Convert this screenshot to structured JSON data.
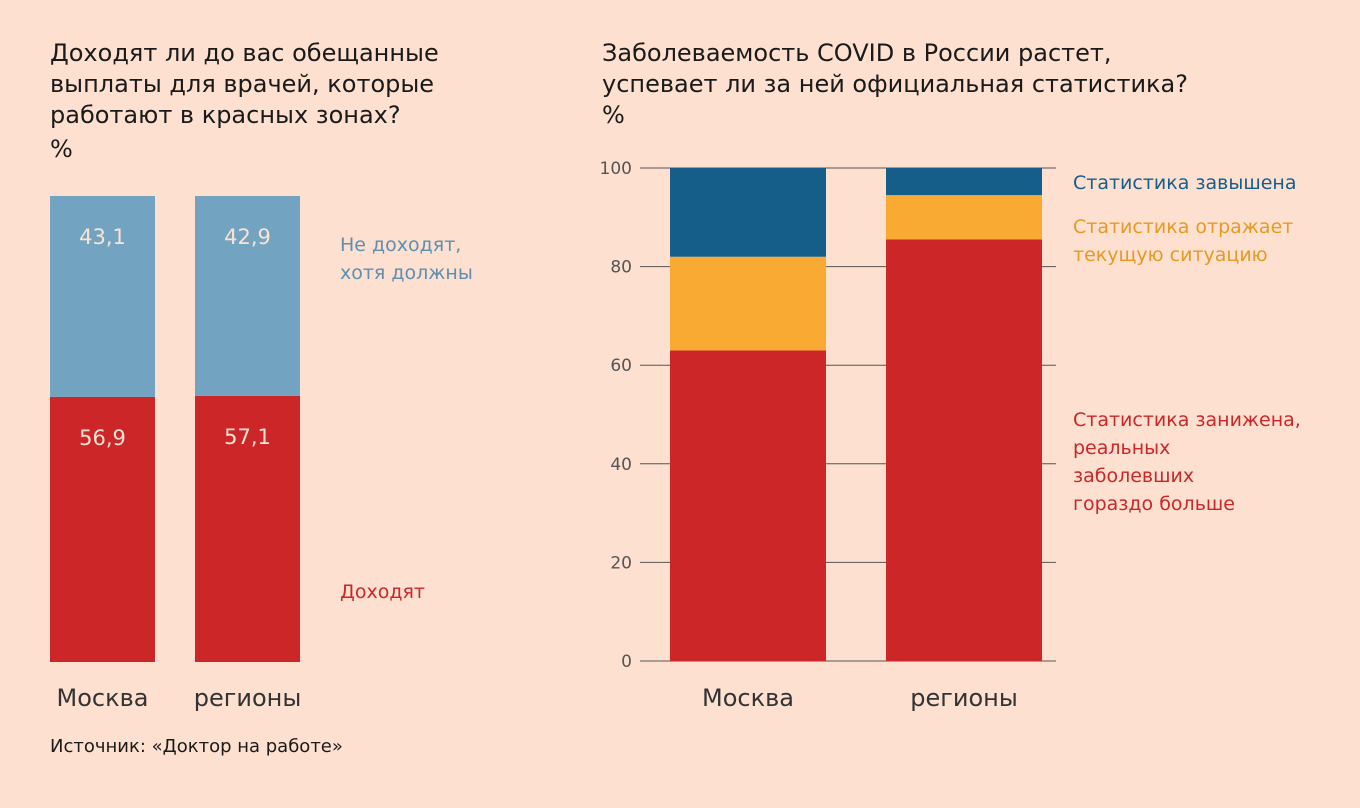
{
  "left_chart": {
    "title": "Доходят ли до вас обещанные\nвыплаты для врачей, которые\nработают в красных зонах?",
    "unit": "%"
  },
  "right_chart": {
    "title": "Заболеваемость COVID в России растет,\nуспевает ли за ней официальная статистика?",
    "unit": "%"
  },
  "source": "Источник: «Доктор на работе»",
  "colors": {
    "background": "#fde0d0",
    "red": "#cc2628",
    "light_blue": "#72a4c2",
    "dark_blue": "#155e8a",
    "orange": "#f8aa32",
    "grid": "#555555"
  },
  "chart_data": [
    {
      "type": "bar",
      "stacked": true,
      "categories": [
        "Москва",
        "регионы"
      ],
      "ylim": [
        0,
        100
      ],
      "grid": false,
      "axis_visible": false,
      "series": [
        {
          "name": "Доходят",
          "values": [
            56.9,
            57.1
          ],
          "labels": [
            "56,9",
            "57,1"
          ],
          "color": "#cc2628"
        },
        {
          "name": "Не доходят,\nхотя должны",
          "values": [
            43.1,
            42.9
          ],
          "labels": [
            "43,1",
            "42,9"
          ],
          "color": "#72a4c2"
        }
      ]
    },
    {
      "type": "bar",
      "stacked": true,
      "categories": [
        "Москва",
        "регионы"
      ],
      "ylim": [
        0,
        100
      ],
      "yticks": [
        0,
        20,
        40,
        60,
        80,
        100
      ],
      "grid": true,
      "series": [
        {
          "name": "Статистика занижена,\nреальных\nзаболевших\nгораздо больше",
          "values": [
            63,
            85.5
          ],
          "color": "#cc2628"
        },
        {
          "name": "Статистика отражает\nтекущую ситуацию",
          "values": [
            19,
            9
          ],
          "color": "#f8aa32"
        },
        {
          "name": "Статистика завышена",
          "values": [
            18,
            5.5
          ],
          "color": "#155e8a"
        }
      ]
    }
  ]
}
